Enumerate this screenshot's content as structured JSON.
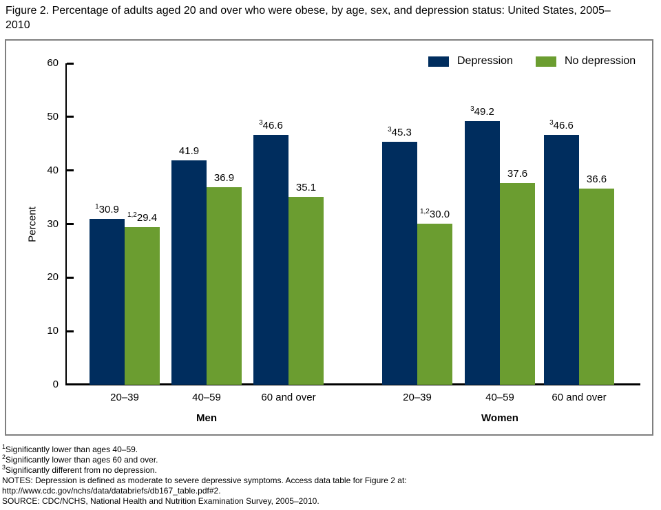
{
  "chart_data": {
    "type": "bar",
    "title": "Figure 2. Percentage of adults aged 20 and over who were obese, by age, sex, and depression status: United States, 2005–2010",
    "ylabel": "Percent",
    "ylim": [
      0,
      60
    ],
    "yticks": [
      0,
      10,
      20,
      30,
      40,
      50,
      60
    ],
    "grid": "off",
    "legend_position": "top-right",
    "sections": [
      "Men",
      "Women"
    ],
    "categories": [
      "20–39",
      "40–59",
      "60 and over",
      "20–39",
      "40–59",
      "60 and over"
    ],
    "series": [
      {
        "name": "Depression",
        "color": "#002d5e",
        "values": [
          30.9,
          41.9,
          46.6,
          45.3,
          49.2,
          46.6
        ],
        "point_labels": [
          {
            "sup": "1",
            "text": "30.9"
          },
          {
            "sup": "",
            "text": "41.9"
          },
          {
            "sup": "3",
            "text": "46.6"
          },
          {
            "sup": "3",
            "text": "45.3"
          },
          {
            "sup": "3",
            "text": "49.2"
          },
          {
            "sup": "3",
            "text": "46.6"
          }
        ]
      },
      {
        "name": "No depression",
        "color": "#6b9d30",
        "values": [
          29.4,
          36.9,
          35.1,
          30.0,
          37.6,
          36.6
        ],
        "point_labels": [
          {
            "sup": "1,2",
            "text": "29.4"
          },
          {
            "sup": "",
            "text": "36.9"
          },
          {
            "sup": "",
            "text": "35.1"
          },
          {
            "sup": "1,2",
            "text": "30.0"
          },
          {
            "sup": "",
            "text": "37.6"
          },
          {
            "sup": "",
            "text": "36.6"
          }
        ]
      }
    ]
  },
  "footnotes": [
    {
      "sup": "1",
      "text": "Significantly lower than ages 40–59."
    },
    {
      "sup": "2",
      "text": "Significantly lower than ages 60 and over."
    },
    {
      "sup": "3",
      "text": "Significantly different from no depression."
    }
  ],
  "notes": "NOTES: Depression is defined as moderate to severe depressive symptoms. Access data table for Figure 2 at: http://www.cdc.gov/nchs/data/databriefs/db167_table.pdf#2.",
  "source": "SOURCE: CDC/NCHS, National Health and Nutrition Examination Survey, 2005–2010."
}
